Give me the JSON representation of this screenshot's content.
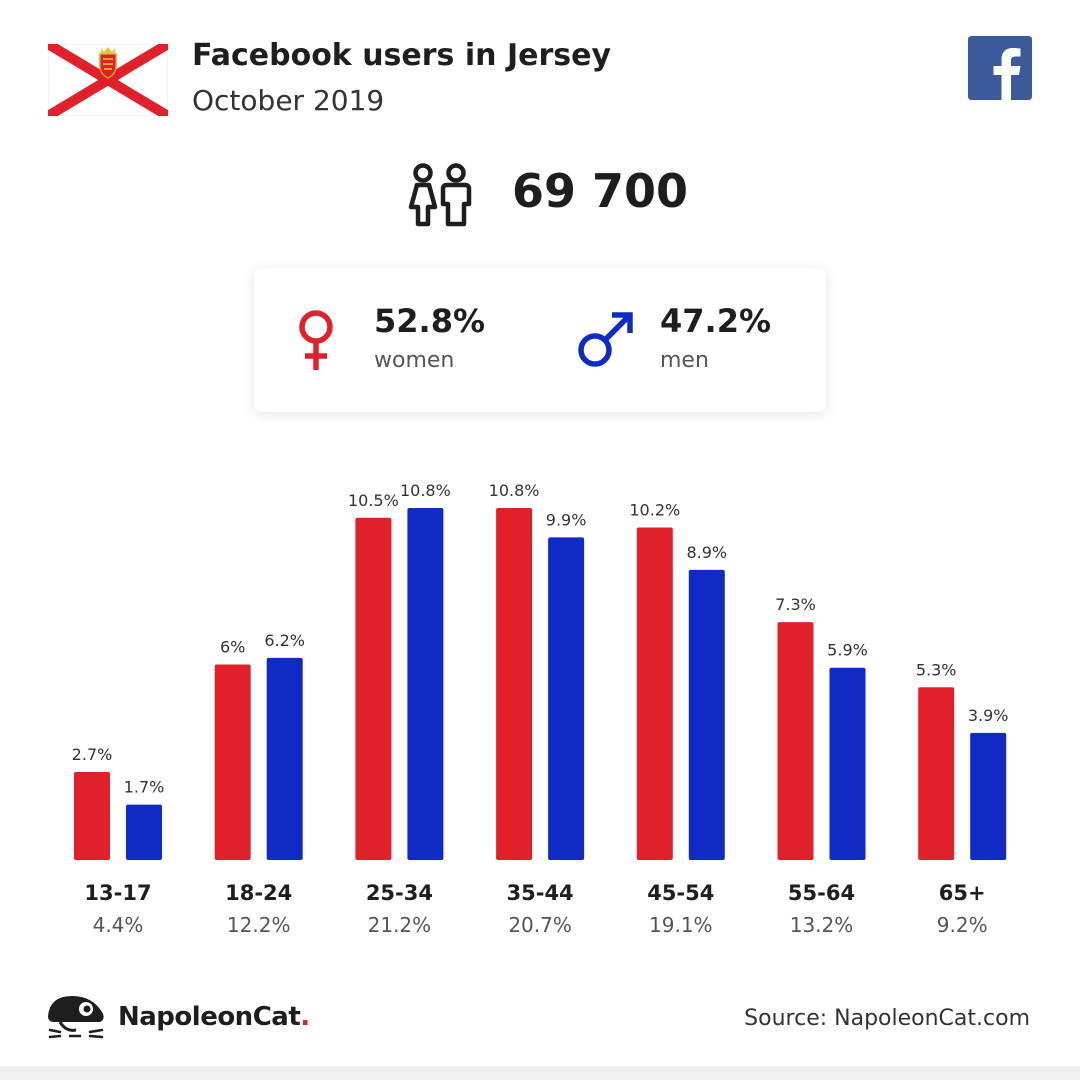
{
  "header": {
    "title": "Facebook users in Jersey",
    "subtitle": "October 2019",
    "flag_icon": "jersey-flag-icon",
    "logo_icon": "facebook-logo-icon"
  },
  "total": {
    "value": "69 700",
    "icon": "people-icon"
  },
  "gender": {
    "women": {
      "pct": "52.8%",
      "label": "women",
      "icon": "female-symbol-icon",
      "color": "#e0202a"
    },
    "men": {
      "pct": "47.2%",
      "label": "men",
      "icon": "male-symbol-icon",
      "color": "#0f2bc4"
    }
  },
  "chart_data": {
    "type": "bar",
    "title": "",
    "xlabel": "",
    "ylabel": "",
    "categories": [
      "13-17",
      "18-24",
      "25-34",
      "35-44",
      "45-54",
      "55-64",
      "65+"
    ],
    "category_totals": [
      "4.4%",
      "12.2%",
      "21.2%",
      "20.7%",
      "19.1%",
      "13.2%",
      "9.2%"
    ],
    "series": [
      {
        "key": "women",
        "color": "#e0202a",
        "values": [
          2.7,
          6,
          10.5,
          10.8,
          10.2,
          7.3,
          5.3
        ],
        "labels": [
          "2.7%",
          "6%",
          "10.5%",
          "10.8%",
          "10.2%",
          "7.3%",
          "5.3%"
        ]
      },
      {
        "key": "men",
        "color": "#0f2bc4",
        "values": [
          1.7,
          6.2,
          10.8,
          9.9,
          8.9,
          5.9,
          3.9
        ],
        "labels": [
          "1.7%",
          "6.2%",
          "10.8%",
          "9.9%",
          "8.9%",
          "5.9%",
          "3.9%"
        ]
      }
    ],
    "ylim": [
      0,
      10.8
    ],
    "grid": false,
    "legend": "none"
  },
  "footer": {
    "brand": "NapoleonCat",
    "brand_dot": ".",
    "brand_icon": "napoleoncat-logo-icon",
    "source": "Source: NapoleonCat.com"
  }
}
